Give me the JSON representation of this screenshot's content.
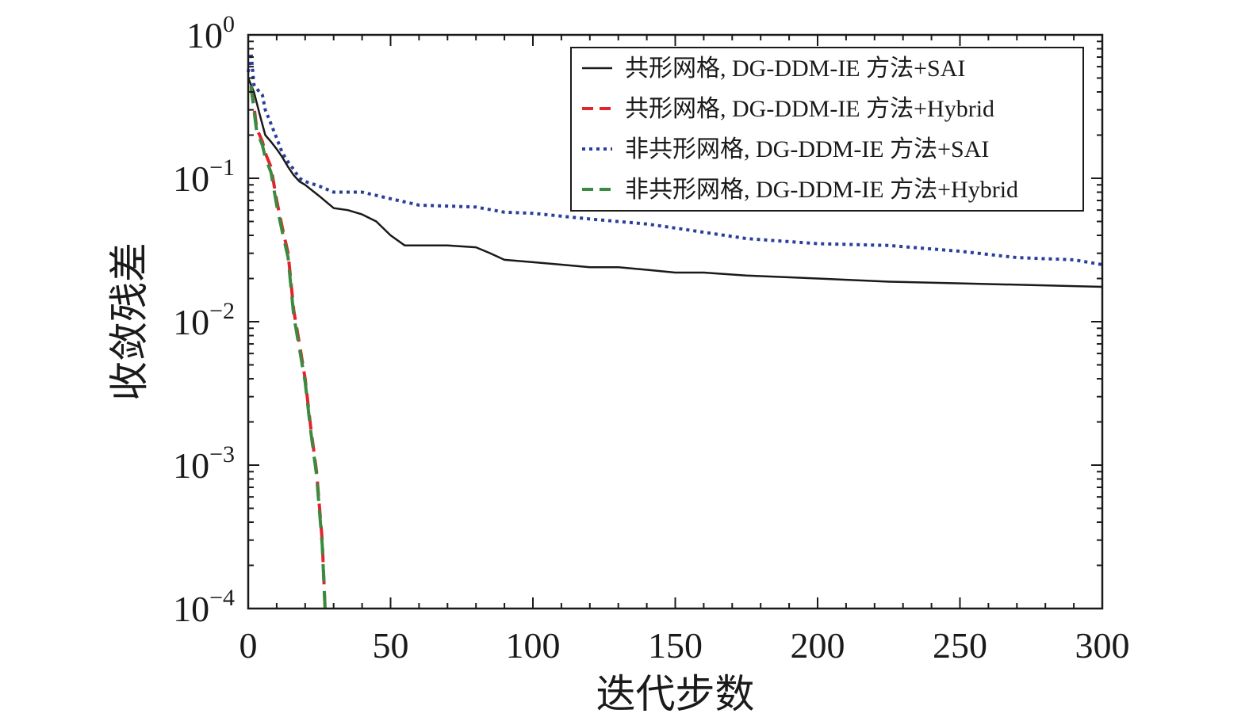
{
  "chart_data": {
    "type": "line",
    "xlabel": "迭代步数",
    "ylabel": "收敛残差",
    "xlim": [
      0,
      300
    ],
    "ylim": [
      0.0001,
      1
    ],
    "yscale": "log",
    "x_ticks": [
      "0",
      "50",
      "100",
      "150",
      "200",
      "250",
      "300"
    ],
    "y_ticks": [
      {
        "base": "10",
        "exp": "0"
      },
      {
        "base": "10",
        "exp": "−1"
      },
      {
        "base": "10",
        "exp": "−2"
      },
      {
        "base": "10",
        "exp": "−3"
      },
      {
        "base": "10",
        "exp": "−4"
      }
    ],
    "grid": false,
    "legend_position": "top-right",
    "series": [
      {
        "name": "共形网格, DG-DDM-IE 方法+SAI",
        "color": "#1a1a1a",
        "style": "solid",
        "x": [
          0,
          2,
          4,
          6,
          8,
          10,
          12,
          14,
          16,
          18,
          20,
          25,
          30,
          35,
          40,
          45,
          50,
          55,
          60,
          70,
          80,
          85,
          90,
          100,
          110,
          120,
          130,
          140,
          150,
          160,
          175,
          200,
          225,
          250,
          275,
          300
        ],
        "y": [
          0.5,
          0.4,
          0.28,
          0.2,
          0.18,
          0.16,
          0.14,
          0.12,
          0.105,
          0.095,
          0.09,
          0.075,
          0.062,
          0.06,
          0.056,
          0.05,
          0.04,
          0.034,
          0.034,
          0.034,
          0.033,
          0.03,
          0.027,
          0.026,
          0.025,
          0.024,
          0.024,
          0.023,
          0.022,
          0.022,
          0.021,
          0.02,
          0.019,
          0.0185,
          0.018,
          0.0175
        ]
      },
      {
        "name": "共形网格, DG-DDM-IE 方法+Hybrid",
        "color": "#e0262b",
        "style": "dashed",
        "x": [
          1,
          2,
          3,
          4,
          5,
          6,
          8,
          10,
          12,
          14,
          16,
          18,
          20,
          22,
          24,
          26,
          27
        ],
        "y": [
          0.42,
          0.32,
          0.22,
          0.2,
          0.18,
          0.15,
          0.12,
          0.07,
          0.045,
          0.03,
          0.012,
          0.007,
          0.004,
          0.0018,
          0.0009,
          0.0003,
          0.0001
        ]
      },
      {
        "name": "非共形网格, DG-DDM-IE 方法+SAI",
        "color": "#2a3f9a",
        "style": "dotted",
        "x": [
          0,
          1,
          2,
          3,
          4,
          5,
          6,
          8,
          10,
          12,
          14,
          16,
          18,
          20,
          25,
          30,
          40,
          50,
          60,
          80,
          90,
          100,
          120,
          140,
          150,
          175,
          200,
          225,
          250,
          270,
          290,
          300
        ],
        "y": [
          0.55,
          0.75,
          0.45,
          0.42,
          0.4,
          0.38,
          0.3,
          0.24,
          0.19,
          0.15,
          0.13,
          0.115,
          0.1,
          0.095,
          0.088,
          0.08,
          0.08,
          0.072,
          0.065,
          0.063,
          0.058,
          0.057,
          0.052,
          0.048,
          0.045,
          0.038,
          0.035,
          0.034,
          0.031,
          0.028,
          0.027,
          0.025
        ]
      },
      {
        "name": "非共形网格, DG-DDM-IE 方法+Hybrid",
        "color": "#3a8a3f",
        "style": "longdash",
        "x": [
          1,
          2,
          3,
          4,
          5,
          6,
          8,
          10,
          12,
          14,
          16,
          18,
          20,
          22,
          24,
          26,
          27
        ],
        "y": [
          0.44,
          0.3,
          0.21,
          0.19,
          0.17,
          0.14,
          0.11,
          0.065,
          0.042,
          0.028,
          0.011,
          0.0065,
          0.0038,
          0.0017,
          0.00085,
          0.00028,
          0.0001
        ]
      }
    ]
  }
}
